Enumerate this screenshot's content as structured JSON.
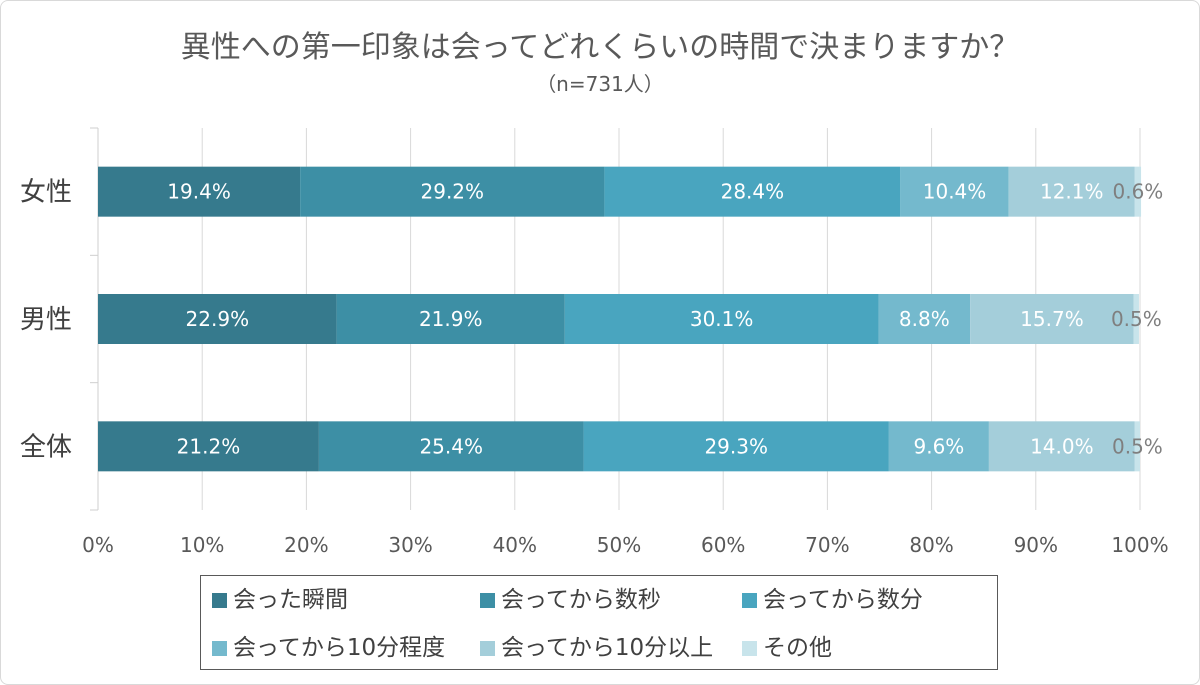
{
  "chart_data": {
    "type": "bar",
    "horizontal": true,
    "stacked": true,
    "title": "異性への第一印象は会ってどれくらいの時間で決まりますか？",
    "subtitle": "（n=731人）",
    "categories": [
      "女性",
      "男性",
      "全体"
    ],
    "series": [
      {
        "name": "会った瞬間",
        "color": "#367A8D",
        "label_color": "#FFFFFF",
        "values": [
          19.4,
          22.9,
          21.2
        ],
        "labels": [
          "19.4%",
          "22.9%",
          "21.2%"
        ]
      },
      {
        "name": "会ってから数秒",
        "color": "#3D8FA5",
        "label_color": "#FFFFFF",
        "values": [
          29.2,
          21.9,
          25.4
        ],
        "labels": [
          "29.2%",
          "21.9%",
          "25.4%"
        ]
      },
      {
        "name": "会ってから数分",
        "color": "#49A5BF",
        "label_color": "#FFFFFF",
        "values": [
          28.4,
          30.1,
          29.3
        ],
        "labels": [
          "28.4%",
          "30.1%",
          "29.3%"
        ]
      },
      {
        "name": "会ってから10分程度",
        "color": "#74B9CD",
        "label_color": "#FFFFFF",
        "values": [
          10.4,
          8.8,
          9.6
        ],
        "labels": [
          "10.4%",
          "8.8%",
          "9.6%"
        ]
      },
      {
        "name": "会ってから10分以上",
        "color": "#A4CEDA",
        "label_color": "#FFFFFF",
        "values": [
          12.1,
          15.7,
          14.0
        ],
        "labels": [
          "12.1%",
          "15.7%",
          "14.0%"
        ]
      },
      {
        "name": "その他",
        "color": "#C8E4EB",
        "label_color": "#7F7F7F",
        "values": [
          0.6,
          0.5,
          0.5
        ],
        "labels": [
          "0.6%",
          "0.5%",
          "0.5%"
        ]
      }
    ],
    "xlim": [
      0,
      100
    ],
    "x_ticks": [
      0,
      10,
      20,
      30,
      40,
      50,
      60,
      70,
      80,
      90,
      100
    ],
    "x_tick_labels": [
      "0%",
      "10%",
      "20%",
      "30%",
      "40%",
      "50%",
      "60%",
      "70%",
      "80%",
      "90%",
      "100%"
    ],
    "grid": true,
    "legend": "bottom"
  }
}
